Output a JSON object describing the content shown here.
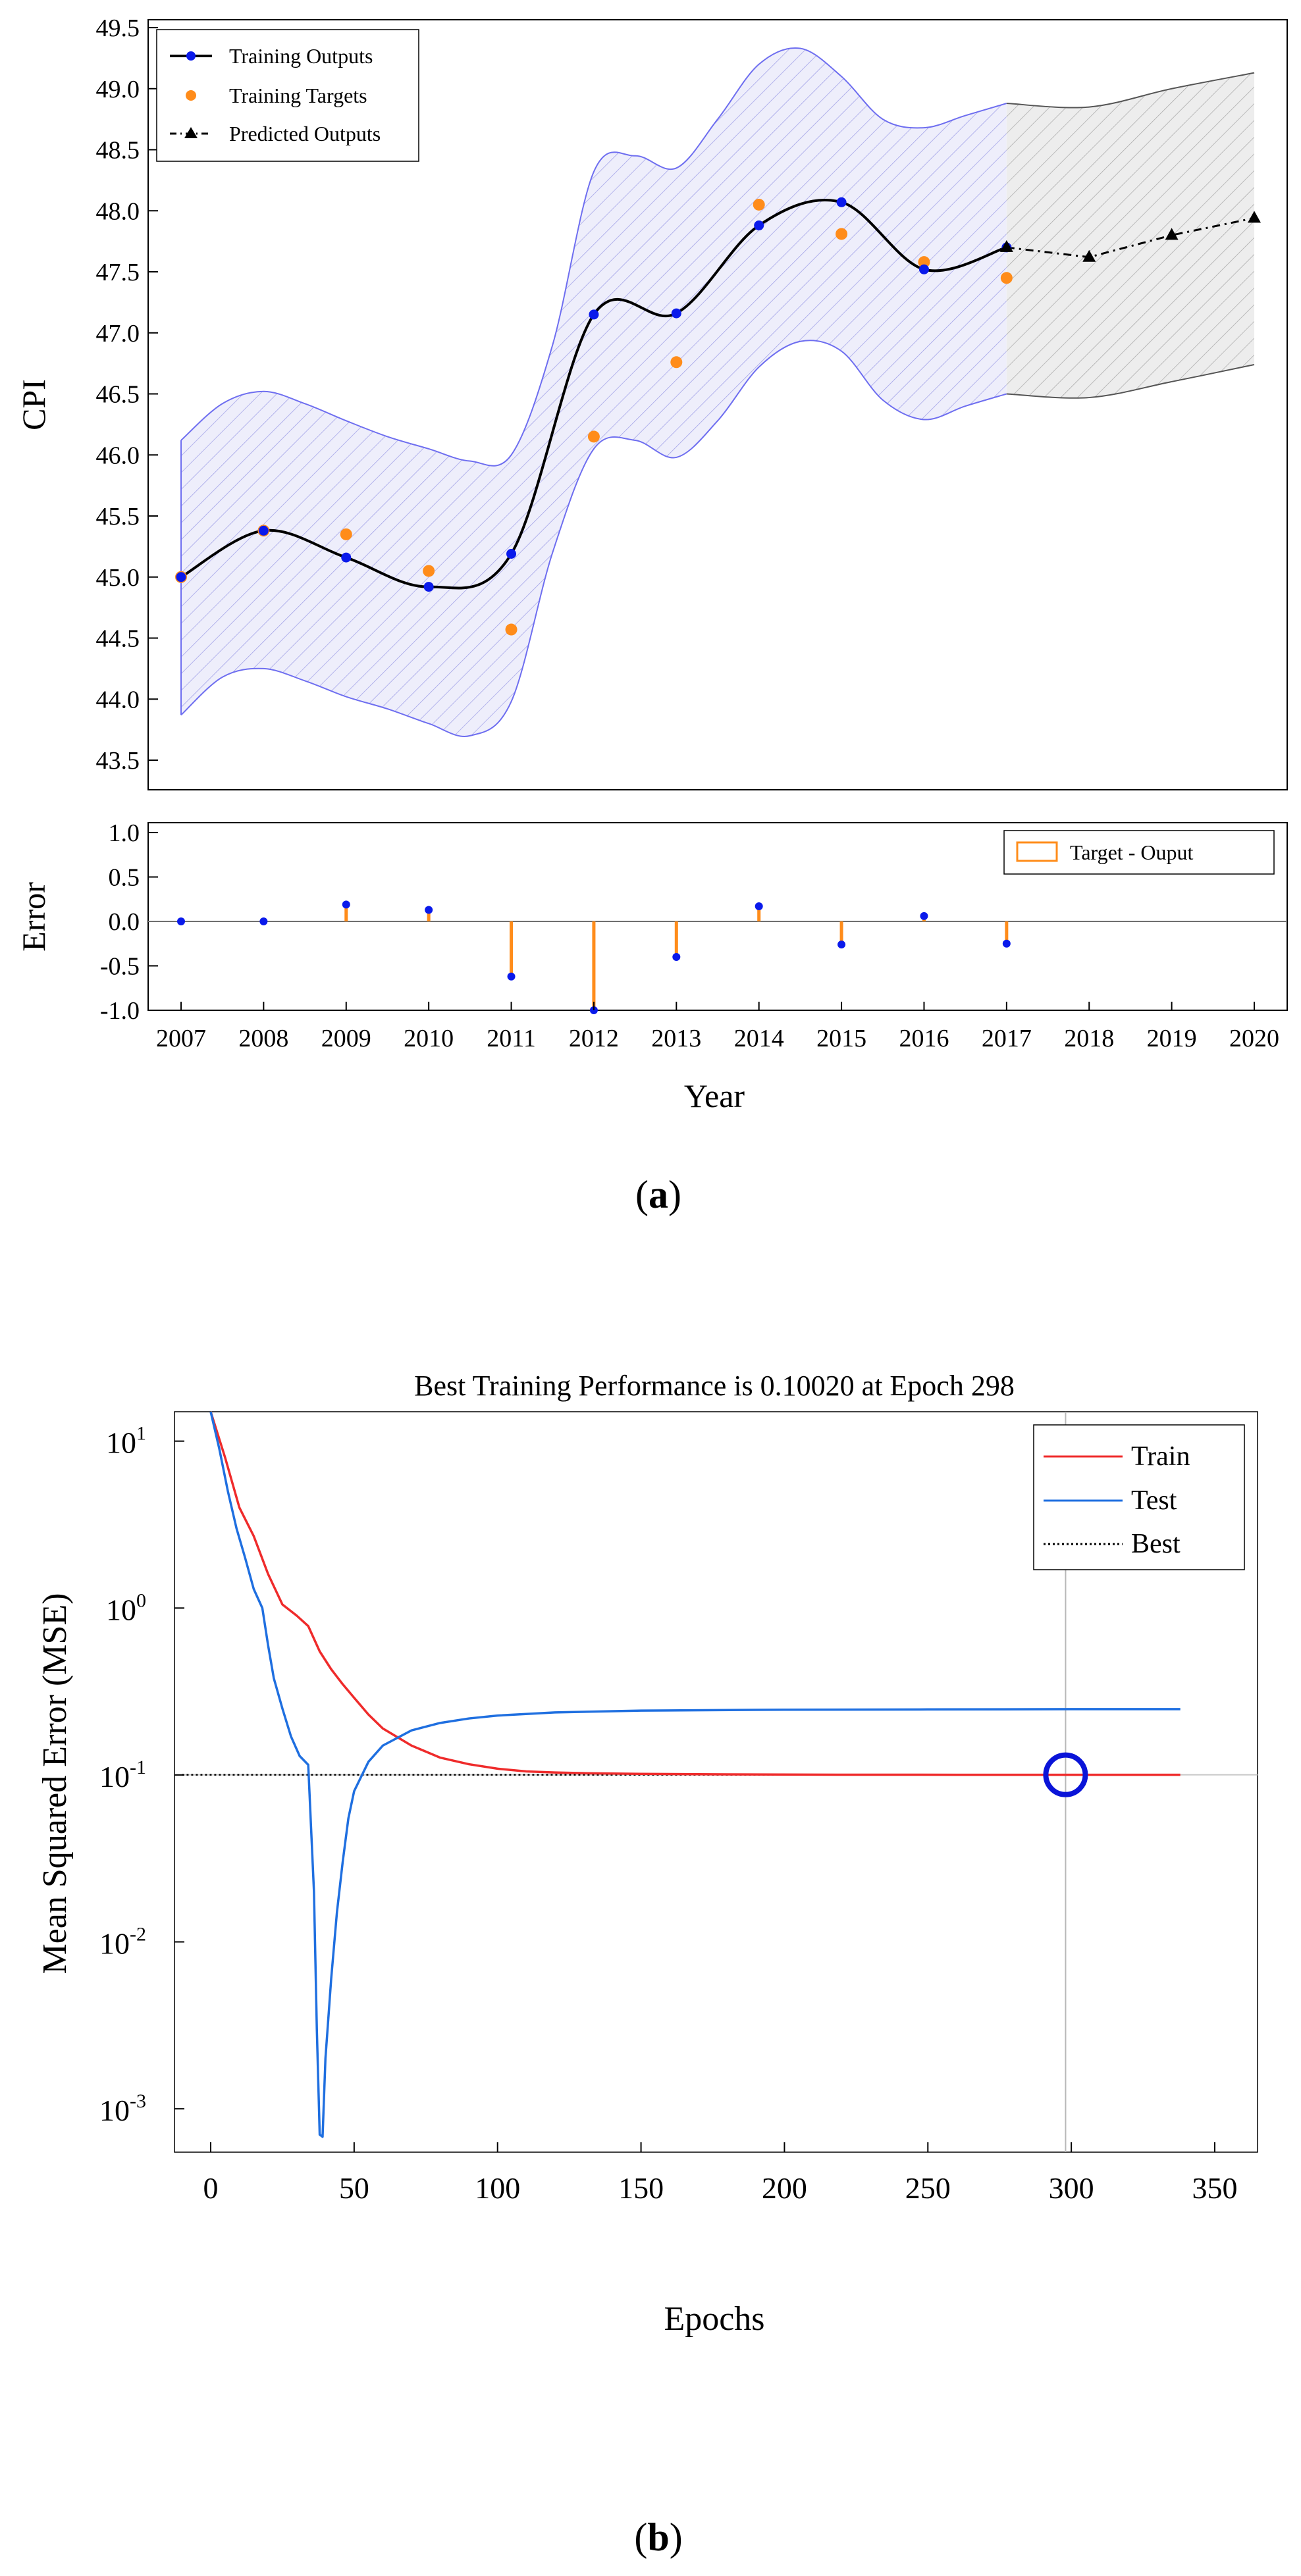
{
  "chart_data": [
    {
      "panel_label": "(a)",
      "panel_letter": "a",
      "type": "line",
      "ylabel": "CPI",
      "xlabel": "Year",
      "ylim": [
        43.3,
        49.5
      ],
      "xlim": [
        2007,
        2020
      ],
      "ytick_labels": [
        "43.5",
        "44.0",
        "44.5",
        "45.0",
        "45.5",
        "46.0",
        "46.5",
        "47.0",
        "47.5",
        "48.0",
        "48.5",
        "49.0",
        "49.5"
      ],
      "legend": {
        "training_outputs": "Training Outputs",
        "training_targets": "Training Targets",
        "predicted_outputs": "Predicted Outputs"
      },
      "colors": {
        "outputs": "#0a1aeb",
        "targets": "#ff8c1a",
        "predicted": "#000000",
        "band_edge": "#6e6ef0",
        "band_fill": "#eeeefb",
        "pred_band_fill": "#ededed",
        "pred_band_edge": "#555555"
      },
      "training_outputs": {
        "x": [
          2007,
          2008,
          2009,
          2010,
          2011,
          2012,
          2013,
          2014,
          2015,
          2016,
          2017
        ],
        "y": [
          45.0,
          45.38,
          45.16,
          44.92,
          45.19,
          47.15,
          47.16,
          47.88,
          48.07,
          47.52,
          47.7
        ]
      },
      "training_targets": {
        "x": [
          2007,
          2008,
          2009,
          2010,
          2011,
          2012,
          2013,
          2014,
          2015,
          2016,
          2017
        ],
        "y": [
          45.0,
          45.38,
          45.35,
          45.05,
          44.57,
          46.15,
          46.76,
          48.05,
          47.81,
          47.58,
          47.45
        ]
      },
      "predicted_outputs": {
        "x": [
          2017,
          2018,
          2019,
          2020
        ],
        "y": [
          47.7,
          47.62,
          47.8,
          47.94
        ]
      },
      "confidence_band": {
        "x": [
          2007,
          2007.5,
          2008,
          2008.5,
          2009,
          2009.5,
          2010,
          2010.5,
          2011,
          2011.5,
          2012,
          2012.5,
          2013,
          2013.5,
          2014,
          2014.5,
          2015,
          2015.5,
          2016,
          2016.5,
          2017
        ],
        "upper": [
          46.12,
          46.42,
          46.52,
          46.42,
          46.28,
          46.15,
          46.05,
          45.95,
          46.0,
          46.9,
          48.32,
          48.45,
          48.35,
          48.75,
          49.2,
          49.33,
          49.1,
          48.75,
          48.68,
          48.78,
          48.88
        ],
        "lower": [
          43.87,
          44.18,
          44.25,
          44.15,
          44.02,
          43.92,
          43.8,
          43.7,
          43.98,
          45.2,
          46.05,
          46.12,
          45.98,
          46.28,
          46.72,
          46.93,
          46.85,
          46.45,
          46.29,
          46.4,
          46.5
        ]
      },
      "prediction_band": {
        "x": [
          2017,
          2018,
          2019,
          2020
        ],
        "upper": [
          48.88,
          48.85,
          49.0,
          49.13
        ],
        "lower": [
          46.5,
          46.47,
          46.6,
          46.74
        ]
      }
    },
    {
      "panel_label": "Error subplot of (a)",
      "type": "bar",
      "ylabel": "Error",
      "ylim": [
        -1.0,
        1.0
      ],
      "ytick_labels": [
        "-1.0",
        "-0.5",
        "0.0",
        "0.5",
        "1.0"
      ],
      "xtick_labels": [
        "2007",
        "2008",
        "2009",
        "2010",
        "2011",
        "2012",
        "2013",
        "2014",
        "2015",
        "2016",
        "2017",
        "2018",
        "2019",
        "2020"
      ],
      "legend": "Target - Ouput",
      "x": [
        2007,
        2008,
        2009,
        2010,
        2011,
        2012,
        2013,
        2014,
        2015,
        2016,
        2017
      ],
      "values": [
        0.0,
        0.0,
        0.19,
        0.13,
        -0.62,
        -1.0,
        -0.4,
        0.17,
        -0.26,
        0.06,
        -0.25
      ]
    },
    {
      "panel_label": "(b)",
      "panel_letter": "b",
      "type": "line",
      "title": "Best Training Performance is 0.10020 at Epoch 298",
      "xlabel": "Epochs",
      "ylabel": "Mean Squared Error (MSE)",
      "yscale": "log",
      "ylim": [
        0.00055,
        15
      ],
      "xlim": [
        -10,
        350
      ],
      "xtick_labels": [
        "0",
        "50",
        "100",
        "150",
        "200",
        "250",
        "300",
        "350"
      ],
      "ytick_labels": [
        {
          "base": "10",
          "exp": "1"
        },
        {
          "base": "10",
          "exp": "0"
        },
        {
          "base": "10",
          "exp": "-1"
        },
        {
          "base": "10",
          "exp": "-2"
        },
        {
          "base": "10",
          "exp": "-3"
        }
      ],
      "series": [
        {
          "name": "Train",
          "color": "#ef2b2b",
          "x": [
            0,
            5,
            10,
            15,
            20,
            25,
            30,
            34,
            38,
            42,
            46,
            50,
            55,
            60,
            70,
            80,
            90,
            100,
            110,
            120,
            130,
            150,
            180,
            220,
            260,
            300,
            338
          ],
          "y": [
            15,
            8.0,
            4.0,
            2.7,
            1.6,
            1.05,
            0.9,
            0.78,
            0.55,
            0.43,
            0.35,
            0.29,
            0.23,
            0.19,
            0.15,
            0.127,
            0.116,
            0.109,
            0.105,
            0.1035,
            0.1025,
            0.1015,
            0.1008,
            0.1004,
            0.1003,
            0.1002,
            0.1002
          ]
        },
        {
          "name": "Test",
          "color": "#1f6fe0",
          "x": [
            0,
            3,
            6,
            9,
            12,
            15,
            18,
            20,
            22,
            25,
            28,
            31,
            34,
            36,
            37,
            38,
            39,
            40,
            42,
            44,
            46,
            48,
            50,
            55,
            60,
            70,
            80,
            90,
            100,
            120,
            150,
            200,
            250,
            300,
            338
          ],
          "y": [
            15,
            9.0,
            5.0,
            3.0,
            2.0,
            1.3,
            1.0,
            0.6,
            0.38,
            0.25,
            0.17,
            0.13,
            0.115,
            0.02,
            0.003,
            0.0007,
            0.00068,
            0.002,
            0.006,
            0.015,
            0.03,
            0.055,
            0.08,
            0.12,
            0.15,
            0.185,
            0.205,
            0.218,
            0.227,
            0.237,
            0.243,
            0.246,
            0.247,
            0.248,
            0.248
          ]
        }
      ],
      "best": {
        "name": "Best",
        "value": 0.1002,
        "epoch": 298,
        "color": "#000000"
      },
      "best_marker_color": "#0a14d8"
    }
  ]
}
